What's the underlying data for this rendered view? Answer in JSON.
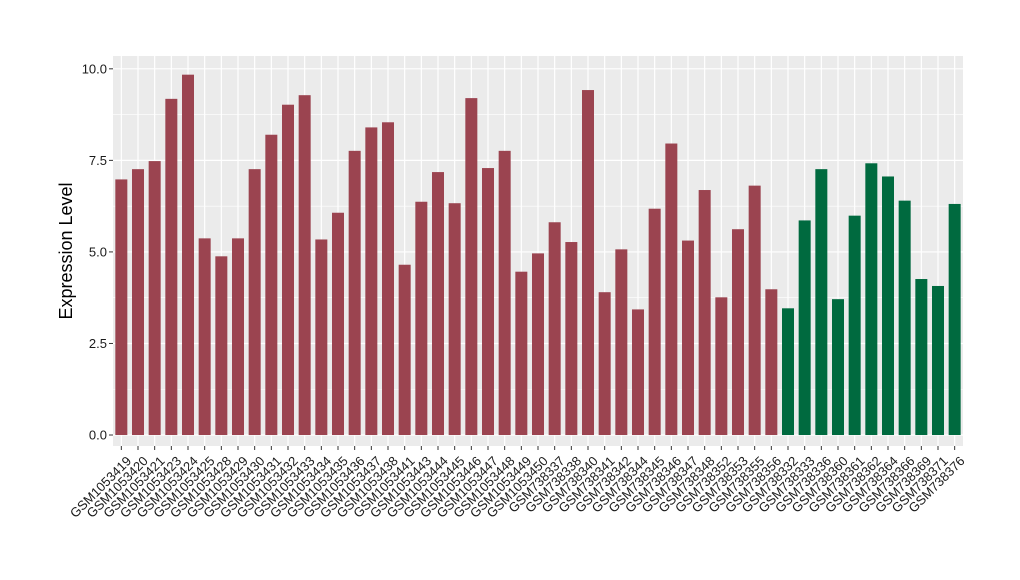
{
  "chart_data": {
    "type": "bar",
    "title": "",
    "xlabel": "",
    "ylabel": "Expression Level",
    "ylim": [
      -0.3,
      10.35
    ],
    "yticks": [
      0.0,
      2.5,
      5.0,
      7.5,
      10.0
    ],
    "ytick_labels": [
      "0.0",
      "2.5",
      "5.0",
      "7.5",
      "10.0"
    ],
    "grid": true,
    "legend": "none",
    "panel_background": "#ebebeb",
    "grid_color": "#ffffff",
    "categories": [
      "GSM1053419",
      "GSM1053420",
      "GSM1053421",
      "GSM1053423",
      "GSM1053424",
      "GSM1053425",
      "GSM1053428",
      "GSM1053429",
      "GSM1053430",
      "GSM1053431",
      "GSM1053432",
      "GSM1053433",
      "GSM1053434",
      "GSM1053435",
      "GSM1053436",
      "GSM1053437",
      "GSM1053438",
      "GSM1053441",
      "GSM1053443",
      "GSM1053444",
      "GSM1053445",
      "GSM1053446",
      "GSM1053447",
      "GSM1053448",
      "GSM1053449",
      "GSM1053450",
      "GSM738337",
      "GSM738338",
      "GSM738340",
      "GSM738341",
      "GSM738342",
      "GSM738344",
      "GSM738345",
      "GSM738346",
      "GSM738347",
      "GSM738348",
      "GSM738352",
      "GSM738353",
      "GSM738355",
      "GSM738356",
      "GSM738332",
      "GSM738333",
      "GSM738336",
      "GSM738360",
      "GSM738361",
      "GSM738362",
      "GSM738364",
      "GSM738366",
      "GSM738369",
      "GSM738371",
      "GSM738376"
    ],
    "values": [
      6.98,
      7.26,
      7.48,
      9.18,
      9.84,
      5.37,
      4.88,
      5.37,
      7.26,
      8.2,
      9.02,
      9.28,
      5.34,
      6.07,
      7.76,
      8.4,
      8.54,
      4.65,
      6.37,
      7.18,
      6.33,
      9.2,
      7.29,
      7.76,
      4.46,
      4.96,
      5.81,
      5.27,
      9.42,
      3.9,
      5.07,
      3.43,
      6.18,
      7.96,
      5.31,
      6.69,
      3.76,
      5.62,
      6.81,
      3.98,
      3.46,
      5.86,
      7.26,
      3.71,
      5.99,
      7.42,
      7.06,
      6.4,
      4.26,
      4.07,
      6.31
    ],
    "colors": [
      "#9b4450",
      "#9b4450",
      "#9b4450",
      "#9b4450",
      "#9b4450",
      "#9b4450",
      "#9b4450",
      "#9b4450",
      "#9b4450",
      "#9b4450",
      "#9b4450",
      "#9b4450",
      "#9b4450",
      "#9b4450",
      "#9b4450",
      "#9b4450",
      "#9b4450",
      "#9b4450",
      "#9b4450",
      "#9b4450",
      "#9b4450",
      "#9b4450",
      "#9b4450",
      "#9b4450",
      "#9b4450",
      "#9b4450",
      "#9b4450",
      "#9b4450",
      "#9b4450",
      "#9b4450",
      "#9b4450",
      "#9b4450",
      "#9b4450",
      "#9b4450",
      "#9b4450",
      "#9b4450",
      "#9b4450",
      "#9b4450",
      "#9b4450",
      "#9b4450",
      "#006a3f",
      "#006a3f",
      "#006a3f",
      "#006a3f",
      "#006a3f",
      "#006a3f",
      "#006a3f",
      "#006a3f",
      "#006a3f",
      "#006a3f",
      "#006a3f"
    ]
  }
}
